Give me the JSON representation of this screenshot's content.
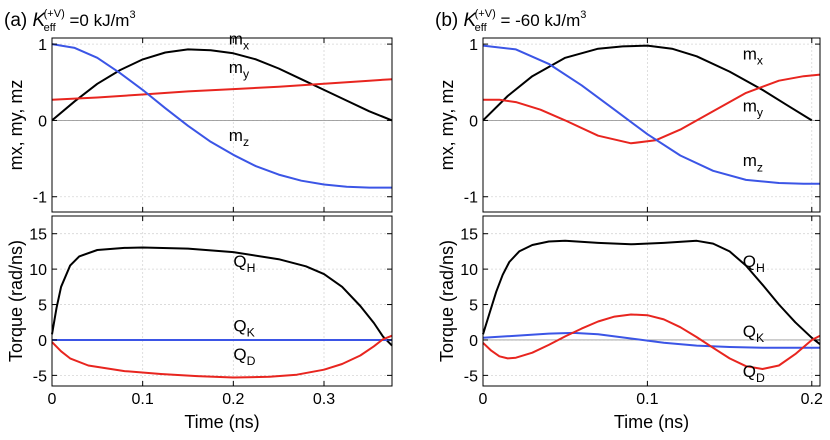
{
  "chart_data": [
    {
      "type": "line",
      "panel": "(a)",
      "title": "K_eff^(+V) =0 kJ/m³",
      "title_parts": {
        "label": "(a)",
        "k": "K",
        "sub": "eff",
        "sup": "(+V)",
        "rest": " =0 kJ/m",
        "exp": "3"
      },
      "xlabel": "Time (ns)",
      "xlim": [
        0,
        0.375
      ],
      "xticks": [
        0,
        0.1,
        0.2,
        0.3
      ],
      "xtick_labels": [
        "0",
        "0.1",
        "0.2",
        "0.3"
      ],
      "grid": true,
      "top": {
        "ylabel": "mx, my, mz",
        "ylim": [
          -1.2,
          1.08
        ],
        "yticks": [
          -1,
          0,
          1
        ],
        "ytick_labels": [
          "-1",
          "0",
          "1"
        ],
        "series": [
          {
            "name": "mx",
            "label": "m",
            "sub": "x",
            "color": "#000000",
            "x": [
              0,
              0.025,
              0.05,
              0.075,
              0.1,
              0.125,
              0.15,
              0.175,
              0.2,
              0.225,
              0.25,
              0.275,
              0.3,
              0.325,
              0.35,
              0.375
            ],
            "y": [
              0,
              0.25,
              0.48,
              0.66,
              0.8,
              0.89,
              0.93,
              0.92,
              0.88,
              0.8,
              0.68,
              0.54,
              0.4,
              0.26,
              0.12,
              0
            ]
          },
          {
            "name": "my",
            "label": "m",
            "sub": "y",
            "color": "#e8251f",
            "x": [
              0,
              0.05,
              0.1,
              0.15,
              0.2,
              0.25,
              0.3,
              0.35,
              0.375
            ],
            "y": [
              0.27,
              0.3,
              0.34,
              0.38,
              0.41,
              0.44,
              0.48,
              0.52,
              0.54
            ]
          },
          {
            "name": "mz",
            "label": "m",
            "sub": "z",
            "color": "#3b55e6",
            "x": [
              0,
              0.025,
              0.05,
              0.075,
              0.1,
              0.125,
              0.15,
              0.175,
              0.2,
              0.225,
              0.25,
              0.275,
              0.3,
              0.325,
              0.35,
              0.375
            ],
            "y": [
              1.0,
              0.95,
              0.82,
              0.62,
              0.4,
              0.16,
              -0.07,
              -0.28,
              -0.45,
              -0.6,
              -0.71,
              -0.79,
              -0.84,
              -0.87,
              -0.88,
              -0.88
            ]
          }
        ],
        "labels_at": {
          "mx": [
            0.195,
            0.995
          ],
          "my": [
            0.195,
            0.62
          ],
          "mz": [
            0.195,
            -0.27
          ]
        }
      },
      "bottom": {
        "ylabel": "Torque (rad/ns)",
        "ylim": [
          -6.5,
          17.5
        ],
        "yticks": [
          -5,
          0,
          5,
          10,
          15
        ],
        "ytick_labels": [
          "-5",
          "0",
          "5",
          "10",
          "15"
        ],
        "series": [
          {
            "name": "QH",
            "label": "Q",
            "sub": "H",
            "color": "#000000",
            "x": [
              0,
              0.005,
              0.01,
              0.02,
              0.03,
              0.05,
              0.08,
              0.1,
              0.15,
              0.2,
              0.25,
              0.28,
              0.3,
              0.32,
              0.34,
              0.355,
              0.365,
              0.375
            ],
            "y": [
              0.8,
              4.5,
              7.5,
              10.5,
              11.8,
              12.7,
              13.0,
              13.05,
              12.9,
              12.4,
              11.4,
              10.4,
              9.3,
              7.5,
              4.8,
              2.4,
              0.5,
              -0.8
            ]
          },
          {
            "name": "QK",
            "label": "Q",
            "sub": "K",
            "color": "#3b55e6",
            "x": [
              0,
              0.375
            ],
            "y": [
              0,
              0
            ]
          },
          {
            "name": "QD",
            "label": "Q",
            "sub": "D",
            "color": "#e8251f",
            "x": [
              0,
              0.01,
              0.02,
              0.04,
              0.08,
              0.12,
              0.16,
              0.2,
              0.24,
              0.27,
              0.3,
              0.32,
              0.34,
              0.355,
              0.365,
              0.375
            ],
            "y": [
              -0.3,
              -1.6,
              -2.6,
              -3.6,
              -4.4,
              -4.8,
              -5.1,
              -5.3,
              -5.2,
              -4.9,
              -4.2,
              -3.4,
              -2.2,
              -0.9,
              0.1,
              0.6
            ]
          }
        ],
        "labels_at": {
          "QH": [
            0.2,
            10.3
          ],
          "QK": [
            0.2,
            1.2
          ],
          "QD": [
            0.2,
            -2.8
          ]
        }
      }
    },
    {
      "type": "line",
      "panel": "(b)",
      "title": "K_eff^(+V) = -60 kJ/m³",
      "title_parts": {
        "label": "(b)",
        "k": "K",
        "sub": "eff",
        "sup": "(+V)",
        "rest": " = -60 kJ/m",
        "exp": "3"
      },
      "xlabel": "Time (ns)",
      "xlim": [
        0,
        0.205
      ],
      "xticks": [
        0,
        0.1,
        0.2
      ],
      "xtick_labels": [
        "0",
        "0.1",
        "0.2"
      ],
      "grid": true,
      "top": {
        "ylabel": "mx, my, mz",
        "ylim": [
          -1.2,
          1.08
        ],
        "yticks": [
          -1,
          0,
          1
        ],
        "ytick_labels": [
          "-1",
          "0",
          "1"
        ],
        "series": [
          {
            "name": "mx",
            "label": "m",
            "sub": "x",
            "color": "#000000",
            "x": [
              0,
              0.015,
              0.03,
              0.05,
              0.07,
              0.085,
              0.1,
              0.115,
              0.13,
              0.15,
              0.17,
              0.185,
              0.2
            ],
            "y": [
              0,
              0.32,
              0.58,
              0.82,
              0.94,
              0.97,
              0.98,
              0.94,
              0.84,
              0.64,
              0.4,
              0.2,
              0
            ]
          },
          {
            "name": "my",
            "label": "m",
            "sub": "y",
            "color": "#e8251f",
            "x": [
              0,
              0.01,
              0.02,
              0.035,
              0.05,
              0.07,
              0.09,
              0.105,
              0.12,
              0.14,
              0.16,
              0.18,
              0.195,
              0.205
            ],
            "y": [
              0.27,
              0.27,
              0.24,
              0.14,
              0.0,
              -0.2,
              -0.3,
              -0.26,
              -0.12,
              0.12,
              0.36,
              0.52,
              0.58,
              0.6
            ]
          },
          {
            "name": "mz",
            "label": "m",
            "sub": "z",
            "color": "#3b55e6",
            "x": [
              0,
              0.02,
              0.04,
              0.06,
              0.08,
              0.1,
              0.12,
              0.14,
              0.16,
              0.18,
              0.195,
              0.205
            ],
            "y": [
              0.98,
              0.93,
              0.74,
              0.46,
              0.14,
              -0.18,
              -0.46,
              -0.66,
              -0.78,
              -0.82,
              -0.83,
              -0.83
            ]
          }
        ],
        "labels_at": {
          "mx": [
            0.158,
            0.8
          ],
          "my": [
            0.158,
            0.12
          ],
          "mz": [
            0.158,
            -0.6
          ]
        }
      },
      "bottom": {
        "ylabel": "Torque (rad/ns)",
        "ylim": [
          -6.5,
          17.5
        ],
        "yticks": [
          -5,
          0,
          5,
          10,
          15
        ],
        "ytick_labels": [
          "-5",
          "0",
          "5",
          "10",
          "15"
        ],
        "series": [
          {
            "name": "QH",
            "label": "Q",
            "sub": "H",
            "color": "#000000",
            "x": [
              0,
              0.004,
              0.008,
              0.012,
              0.016,
              0.022,
              0.03,
              0.04,
              0.05,
              0.07,
              0.09,
              0.11,
              0.13,
              0.14,
              0.15,
              0.16,
              0.17,
              0.18,
              0.19,
              0.2,
              0.205
            ],
            "y": [
              0.8,
              3.8,
              6.8,
              9.2,
              11.0,
              12.5,
              13.4,
              13.9,
              14.0,
              13.7,
              13.5,
              13.7,
              14.0,
              13.6,
              12.5,
              10.5,
              7.8,
              5.0,
              2.5,
              0.3,
              -0.6
            ]
          },
          {
            "name": "QK",
            "label": "Q",
            "sub": "K",
            "color": "#3b55e6",
            "x": [
              0,
              0.02,
              0.04,
              0.055,
              0.07,
              0.09,
              0.11,
              0.13,
              0.15,
              0.17,
              0.19,
              0.205
            ],
            "y": [
              0.3,
              0.6,
              0.9,
              1.0,
              0.8,
              0.2,
              -0.4,
              -0.8,
              -1.0,
              -1.1,
              -1.1,
              -1.1
            ]
          },
          {
            "name": "QD",
            "label": "Q",
            "sub": "D",
            "color": "#e8251f",
            "x": [
              0,
              0.005,
              0.01,
              0.015,
              0.02,
              0.03,
              0.04,
              0.05,
              0.06,
              0.07,
              0.08,
              0.09,
              0.1,
              0.11,
              0.12,
              0.13,
              0.14,
              0.15,
              0.16,
              0.17,
              0.18,
              0.19,
              0.2,
              0.205
            ],
            "y": [
              -0.4,
              -1.5,
              -2.3,
              -2.6,
              -2.5,
              -1.8,
              -0.7,
              0.5,
              1.6,
              2.6,
              3.3,
              3.6,
              3.5,
              2.9,
              1.8,
              0.4,
              -1.1,
              -2.6,
              -3.7,
              -4.1,
              -3.6,
              -2.0,
              0.0,
              0.6
            ]
          }
        ],
        "labels_at": {
          "QH": [
            0.158,
            10.3
          ],
          "QK": [
            0.158,
            0.4
          ],
          "QD": [
            0.158,
            -5.2
          ]
        }
      }
    }
  ]
}
